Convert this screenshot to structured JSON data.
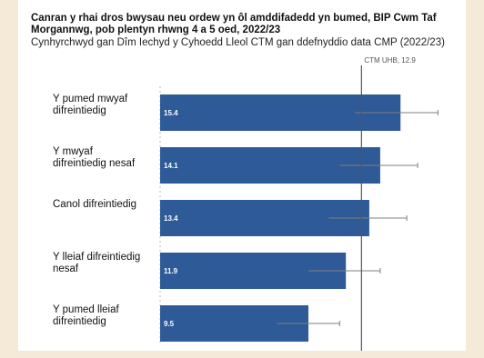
{
  "chart_data": {
    "type": "bar",
    "orientation": "horizontal",
    "title": "Canran y rhai dros bwysau neu ordew yn ôl amddifadedd yn bumed, BIP Cwm Taf Morgannwg, pob plentyn rhwng 4 a 5 oed, 2022/23",
    "subtitle": "Cynhyrchwyd gan Dîm Iechyd y Cyhoedd Lleol CTM  gan ddefnyddio data CMP (2022/23)",
    "categories": [
      [
        "Y pumed mwyaf",
        "difreintiedig"
      ],
      [
        "Y mwyaf",
        "difreintiedig nesaf"
      ],
      [
        "Canol difreintiedig"
      ],
      [
        "Y lleiaf difreintiedig",
        "nesaf"
      ],
      [
        "Y pumed lleiaf",
        "difreintiedig"
      ]
    ],
    "values": [
      15.4,
      14.1,
      13.4,
      11.9,
      9.5
    ],
    "value_labels": [
      "15.4",
      "14.1",
      "13.4",
      "11.9",
      "9.5"
    ],
    "error_low": [
      12.5,
      11.5,
      10.8,
      9.5,
      7.5
    ],
    "error_high": [
      17.8,
      16.5,
      15.8,
      14.1,
      11.5
    ],
    "reference_line": {
      "label": "CTM UHB, 12.9",
      "value": 12.9
    },
    "xlim": [
      0,
      19
    ],
    "bar_color": "#2e5a97",
    "error_color": "#7f7f7f",
    "grid": false
  }
}
